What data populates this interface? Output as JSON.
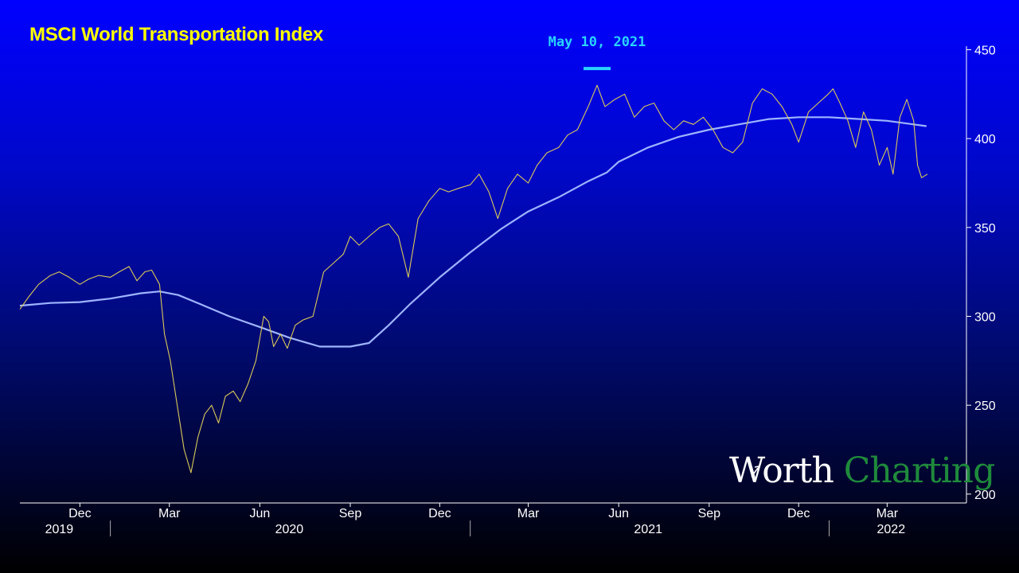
{
  "title": "MSCI World Transportation Index",
  "watermark": {
    "word1": "Worth",
    "word2": "Charting"
  },
  "peak_annotation": "May 10, 2021",
  "colors": {
    "price": "#d8c85a",
    "moving_average": "#9db4ff",
    "title": "#ffff00",
    "annotation": "#29d4ff",
    "watermark_green": "#1f8a3c"
  },
  "chart_data": {
    "type": "line",
    "title": "MSCI World Transportation Index",
    "x_range": [
      "2019-10-01",
      "2022-04-11"
    ],
    "y_axis": {
      "position": "right",
      "ticks": [
        200,
        250,
        300,
        350,
        400,
        450
      ],
      "ylim": [
        195,
        452
      ]
    },
    "x_ticks": [
      {
        "date": "2019-12-01",
        "label": "Dec"
      },
      {
        "date": "2020-03-01",
        "label": "Mar"
      },
      {
        "date": "2020-06-01",
        "label": "Jun"
      },
      {
        "date": "2020-09-01",
        "label": "Sep"
      },
      {
        "date": "2020-12-01",
        "label": "Dec"
      },
      {
        "date": "2021-03-01",
        "label": "Mar"
      },
      {
        "date": "2021-06-01",
        "label": "Jun"
      },
      {
        "date": "2021-09-01",
        "label": "Sep"
      },
      {
        "date": "2021-12-01",
        "label": "Dec"
      },
      {
        "date": "2022-03-01",
        "label": "Mar"
      }
    ],
    "year_labels": [
      {
        "date": "2019-11-10",
        "label": "2019"
      },
      {
        "date": "2020-07-01",
        "label": "2020"
      },
      {
        "date": "2021-07-01",
        "label": "2021"
      },
      {
        "date": "2022-03-05",
        "label": "2022"
      }
    ],
    "year_dividers": [
      "2020-01-01",
      "2021-01-01",
      "2022-01-01"
    ],
    "peak": {
      "date": "2021-05-10",
      "value": 430
    },
    "series": [
      {
        "role": "price",
        "points": [
          [
            "2019-10-01",
            304
          ],
          [
            "2019-10-10",
            311
          ],
          [
            "2019-10-20",
            318
          ],
          [
            "2019-11-01",
            323
          ],
          [
            "2019-11-10",
            325
          ],
          [
            "2019-11-20",
            322
          ],
          [
            "2019-12-01",
            318
          ],
          [
            "2019-12-10",
            321
          ],
          [
            "2019-12-20",
            323
          ],
          [
            "2020-01-01",
            322
          ],
          [
            "2020-01-10",
            325
          ],
          [
            "2020-01-20",
            328
          ],
          [
            "2020-01-28",
            320
          ],
          [
            "2020-02-05",
            325
          ],
          [
            "2020-02-12",
            326
          ],
          [
            "2020-02-20",
            318
          ],
          [
            "2020-02-25",
            290
          ],
          [
            "2020-03-02",
            275
          ],
          [
            "2020-03-09",
            250
          ],
          [
            "2020-03-16",
            225
          ],
          [
            "2020-03-23",
            212
          ],
          [
            "2020-03-30",
            232
          ],
          [
            "2020-04-06",
            245
          ],
          [
            "2020-04-13",
            250
          ],
          [
            "2020-04-20",
            240
          ],
          [
            "2020-04-27",
            255
          ],
          [
            "2020-05-05",
            258
          ],
          [
            "2020-05-12",
            252
          ],
          [
            "2020-05-20",
            262
          ],
          [
            "2020-05-28",
            275
          ],
          [
            "2020-06-05",
            300
          ],
          [
            "2020-06-10",
            297
          ],
          [
            "2020-06-15",
            283
          ],
          [
            "2020-06-22",
            290
          ],
          [
            "2020-06-29",
            282
          ],
          [
            "2020-07-07",
            295
          ],
          [
            "2020-07-15",
            298
          ],
          [
            "2020-07-25",
            300
          ],
          [
            "2020-08-05",
            325
          ],
          [
            "2020-08-15",
            330
          ],
          [
            "2020-08-25",
            335
          ],
          [
            "2020-09-01",
            345
          ],
          [
            "2020-09-10",
            340
          ],
          [
            "2020-09-20",
            345
          ],
          [
            "2020-10-01",
            350
          ],
          [
            "2020-10-10",
            352
          ],
          [
            "2020-10-20",
            345
          ],
          [
            "2020-10-30",
            322
          ],
          [
            "2020-11-09",
            355
          ],
          [
            "2020-11-20",
            365
          ],
          [
            "2020-12-01",
            372
          ],
          [
            "2020-12-10",
            370
          ],
          [
            "2020-12-20",
            372
          ],
          [
            "2021-01-01",
            374
          ],
          [
            "2021-01-10",
            380
          ],
          [
            "2021-01-20",
            370
          ],
          [
            "2021-01-29",
            355
          ],
          [
            "2021-02-08",
            372
          ],
          [
            "2021-02-18",
            380
          ],
          [
            "2021-03-01",
            375
          ],
          [
            "2021-03-10",
            385
          ],
          [
            "2021-03-20",
            392
          ],
          [
            "2021-04-01",
            395
          ],
          [
            "2021-04-10",
            402
          ],
          [
            "2021-04-20",
            405
          ],
          [
            "2021-05-01",
            418
          ],
          [
            "2021-05-10",
            430
          ],
          [
            "2021-05-18",
            418
          ],
          [
            "2021-05-28",
            422
          ],
          [
            "2021-06-07",
            425
          ],
          [
            "2021-06-17",
            412
          ],
          [
            "2021-06-27",
            418
          ],
          [
            "2021-07-07",
            420
          ],
          [
            "2021-07-17",
            410
          ],
          [
            "2021-07-27",
            405
          ],
          [
            "2021-08-06",
            410
          ],
          [
            "2021-08-16",
            408
          ],
          [
            "2021-08-26",
            412
          ],
          [
            "2021-09-05",
            405
          ],
          [
            "2021-09-15",
            395
          ],
          [
            "2021-09-25",
            392
          ],
          [
            "2021-10-05",
            398
          ],
          [
            "2021-10-15",
            420
          ],
          [
            "2021-10-25",
            428
          ],
          [
            "2021-11-04",
            425
          ],
          [
            "2021-11-14",
            418
          ],
          [
            "2021-11-24",
            408
          ],
          [
            "2021-12-01",
            398
          ],
          [
            "2021-12-11",
            415
          ],
          [
            "2021-12-21",
            420
          ],
          [
            "2021-12-31",
            425
          ],
          [
            "2022-01-05",
            428
          ],
          [
            "2022-01-12",
            420
          ],
          [
            "2022-01-20",
            410
          ],
          [
            "2022-01-28",
            395
          ],
          [
            "2022-02-05",
            415
          ],
          [
            "2022-02-13",
            405
          ],
          [
            "2022-02-21",
            385
          ],
          [
            "2022-03-01",
            395
          ],
          [
            "2022-03-07",
            380
          ],
          [
            "2022-03-14",
            412
          ],
          [
            "2022-03-21",
            422
          ],
          [
            "2022-03-28",
            410
          ],
          [
            "2022-04-01",
            385
          ],
          [
            "2022-04-05",
            378
          ],
          [
            "2022-04-11",
            380
          ]
        ]
      },
      {
        "role": "moving_average",
        "points": [
          [
            "2019-10-01",
            306
          ],
          [
            "2019-11-01",
            307.5
          ],
          [
            "2019-12-01",
            308
          ],
          [
            "2020-01-01",
            310
          ],
          [
            "2020-02-01",
            313
          ],
          [
            "2020-02-20",
            314
          ],
          [
            "2020-03-10",
            312
          ],
          [
            "2020-04-01",
            307
          ],
          [
            "2020-05-01",
            300
          ],
          [
            "2020-06-01",
            294
          ],
          [
            "2020-07-01",
            288
          ],
          [
            "2020-08-01",
            283
          ],
          [
            "2020-09-01",
            283
          ],
          [
            "2020-09-20",
            285
          ],
          [
            "2020-10-10",
            295
          ],
          [
            "2020-11-01",
            307
          ],
          [
            "2020-12-01",
            322
          ],
          [
            "2021-01-01",
            336
          ],
          [
            "2021-02-01",
            349
          ],
          [
            "2021-03-01",
            359
          ],
          [
            "2021-04-01",
            367
          ],
          [
            "2021-05-01",
            376
          ],
          [
            "2021-05-20",
            381
          ],
          [
            "2021-06-01",
            387
          ],
          [
            "2021-07-01",
            395
          ],
          [
            "2021-08-01",
            401
          ],
          [
            "2021-09-01",
            405
          ],
          [
            "2021-10-01",
            408
          ],
          [
            "2021-11-01",
            411
          ],
          [
            "2021-12-01",
            412
          ],
          [
            "2022-01-01",
            412
          ],
          [
            "2022-02-01",
            411
          ],
          [
            "2022-03-01",
            410
          ],
          [
            "2022-04-10",
            407
          ]
        ]
      }
    ]
  }
}
